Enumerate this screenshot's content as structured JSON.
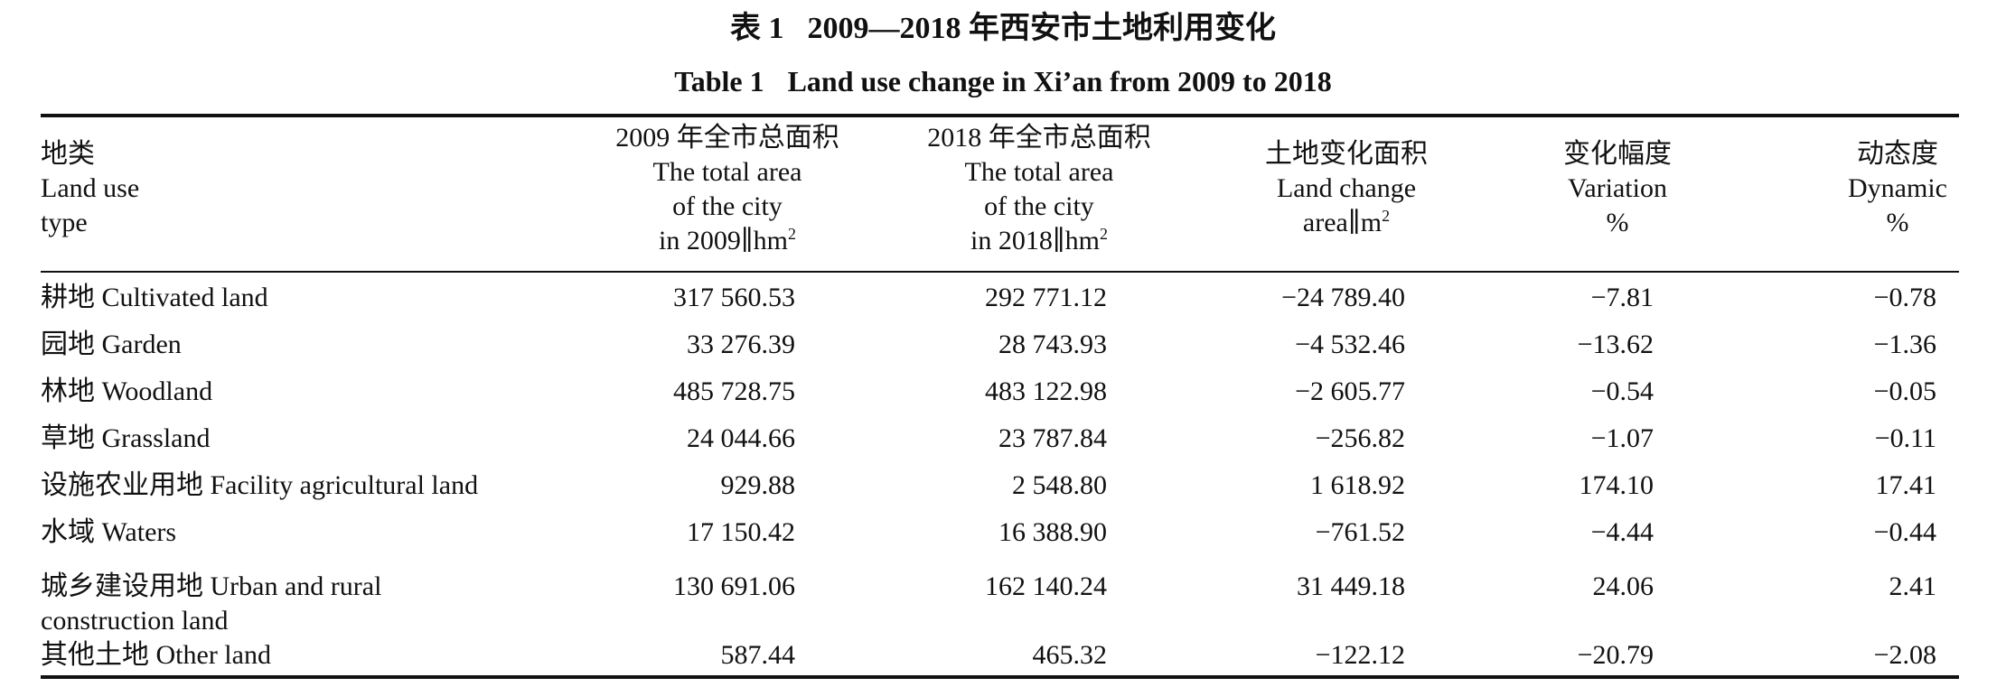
{
  "caption": {
    "cn_num": "表 1",
    "cn_text": "2009—2018 年西安市土地利用变化",
    "en_num": "Table 1",
    "en_text": "Land use change in Xi’an from 2009 to 2018"
  },
  "headers": [
    {
      "cn": "地类",
      "en1": "Land use",
      "en2": "type",
      "en3": ""
    },
    {
      "cn": "2009 年全市总面积",
      "en1": "The total area",
      "en2": "of the city",
      "en3": "in 2009∥hm",
      "sup": "2"
    },
    {
      "cn": "2018 年全市总面积",
      "en1": "The total area",
      "en2": "of the city",
      "en3": "in 2018∥hm",
      "sup": "2"
    },
    {
      "cn": "土地变化面积",
      "en1": "Land change",
      "en2": "area∥m",
      "sup": "2"
    },
    {
      "cn": "变化幅度",
      "en1": "Variation",
      "en2": "%"
    },
    {
      "cn": "动态度",
      "en1": "Dynamic",
      "en2": "%"
    }
  ],
  "rows": [
    {
      "name": "耕地 Cultivated land",
      "a2009": "317 560.53",
      "a2018": "292 771.12",
      "change": "−24 789.40",
      "variation": "−7.81",
      "dynamic": "−0.78"
    },
    {
      "name": "园地 Garden",
      "a2009": "33 276.39",
      "a2018": "28 743.93",
      "change": "−4 532.46",
      "variation": "−13.62",
      "dynamic": "−1.36"
    },
    {
      "name": "林地 Woodland",
      "a2009": "485 728.75",
      "a2018": "483 122.98",
      "change": "−2 605.77",
      "variation": "−0.54",
      "dynamic": "−0.05"
    },
    {
      "name": "草地 Grassland",
      "a2009": "24 044.66",
      "a2018": "23 787.84",
      "change": "−256.82",
      "variation": "−1.07",
      "dynamic": "−0.11"
    },
    {
      "name": "设施农业用地 Facility agricultural land",
      "a2009": "929.88",
      "a2018": "2 548.80",
      "change": "1 618.92",
      "variation": "174.10",
      "dynamic": "17.41"
    },
    {
      "name": "水域 Waters",
      "a2009": "17 150.42",
      "a2018": "16 388.90",
      "change": "−761.52",
      "variation": "−4.44",
      "dynamic": "−0.44"
    },
    {
      "name": "城乡建设用地 Urban and rural construction land",
      "a2009": "130 691.06",
      "a2018": "162 140.24",
      "change": "31 449.18",
      "variation": "24.06",
      "dynamic": "2.41"
    },
    {
      "name": "其他土地 Other land",
      "a2009": "587.44",
      "a2018": "465.32",
      "change": "−122.12",
      "variation": "−20.79",
      "dynamic": "−2.08"
    }
  ]
}
